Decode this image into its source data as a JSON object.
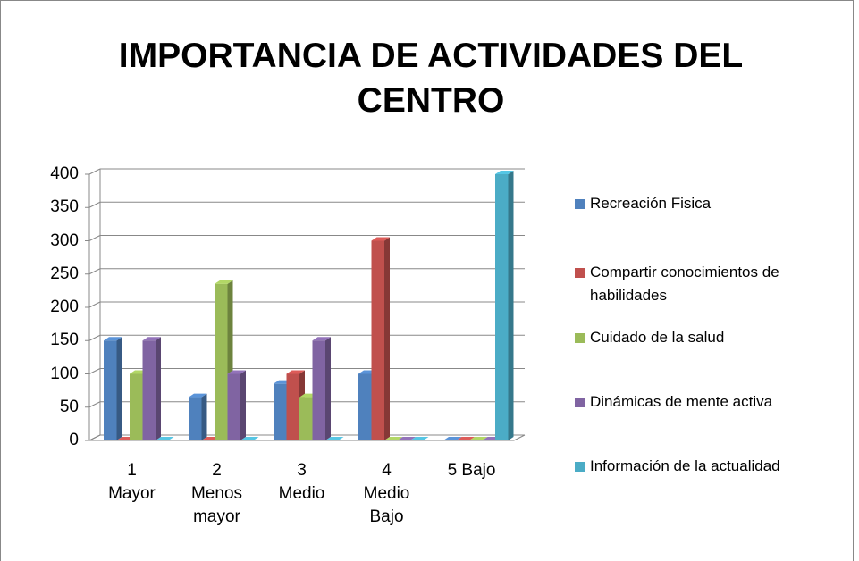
{
  "chart_data": {
    "type": "bar3d",
    "title": "IMPORTANCIA DE ACTIVIDADES DEL CENTRO",
    "categories": [
      "1\nMayor",
      "2\nMenos\nmayor",
      "3\nMedio",
      "4\nMedio\nBajo",
      "5 Bajo"
    ],
    "series": [
      {
        "name": "Recreación Fisica",
        "color": "#4f81bd",
        "values": [
          150,
          65,
          85,
          100,
          0
        ]
      },
      {
        "name": "Compartir conocimientos de habilidades",
        "color": "#c0504d",
        "values": [
          0,
          0,
          100,
          300,
          0
        ]
      },
      {
        "name": "Cuidado de la salud",
        "color": "#9bbb59",
        "values": [
          100,
          235,
          65,
          0,
          0
        ]
      },
      {
        "name": "Dinámicas de mente activa",
        "color": "#8064a2",
        "values": [
          150,
          100,
          150,
          0,
          0
        ]
      },
      {
        "name": "Información de la actualidad",
        "color": "#4bacc6",
        "values": [
          0,
          0,
          0,
          0,
          400
        ]
      }
    ],
    "ylim": [
      0,
      400
    ],
    "yticks": [
      0,
      50,
      100,
      150,
      200,
      250,
      300,
      350,
      400
    ],
    "grid": true,
    "legend": "right"
  }
}
